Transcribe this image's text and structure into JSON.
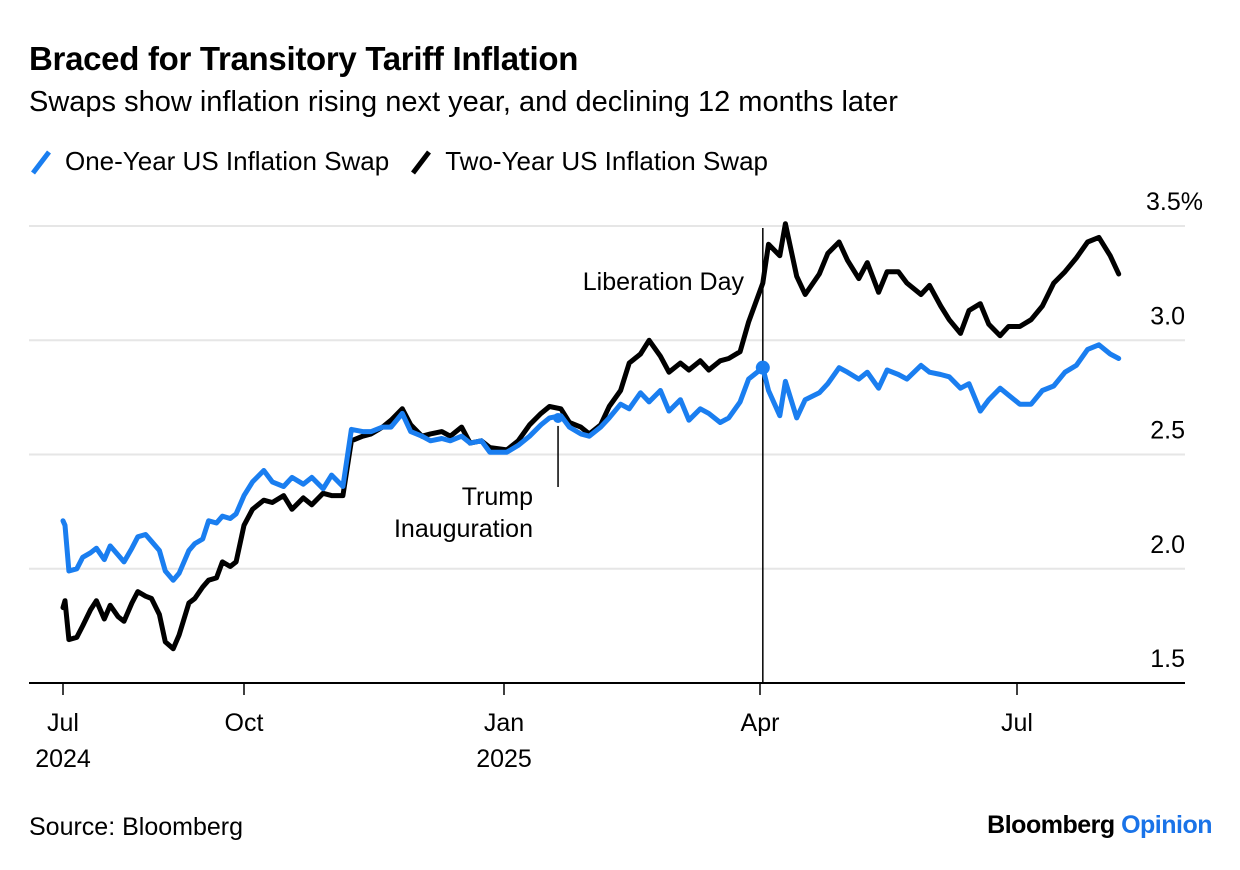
{
  "header": {
    "title": "Braced for Transitory Tariff Inflation",
    "subtitle": "Swaps show inflation rising next year, and declining 12 months later"
  },
  "footer": {
    "source": "Source: Bloomberg",
    "brand_main": "Bloomberg",
    "brand_accent": "Opinion"
  },
  "colors": {
    "one_year": "#1a7ef0",
    "two_year": "#000000",
    "grid": "#e6e6e6",
    "brand_accent": "#1a73e8"
  },
  "chart_data": {
    "type": "line",
    "title": "Braced for Transitory Tariff Inflation",
    "subtitle": "Swaps show inflation rising next year, and declining 12 months later",
    "xlabel": "",
    "ylabel": "",
    "y_unit": "%",
    "ylim": [
      1.5,
      3.5
    ],
    "y_ticks": [
      1.5,
      2.0,
      2.5,
      3.0,
      3.5
    ],
    "y_tick_labels": [
      "1.5",
      "2.0",
      "2.5",
      "3.0",
      "3.5%"
    ],
    "y_axis_position": "right",
    "grid": true,
    "legend_position": "top-left",
    "x_range": [
      "2024-06-12",
      "2025-09-12"
    ],
    "x_ticks": [
      {
        "date": "2024-07-01",
        "label": "Jul",
        "year": "2024"
      },
      {
        "date": "2024-10-01",
        "label": "Oct",
        "year": ""
      },
      {
        "date": "2025-01-01",
        "label": "Jan",
        "year": "2025"
      },
      {
        "date": "2025-04-01",
        "label": "Apr",
        "year": ""
      },
      {
        "date": "2025-07-01",
        "label": "Jul",
        "year": ""
      }
    ],
    "legend": [
      "One-Year US Inflation Swap",
      "Two-Year US Inflation Swap"
    ],
    "annotations": [
      {
        "label": "Trump Inauguration",
        "date": "2025-01-20",
        "series": "One-Year US Inflation Swap",
        "value": 2.66
      },
      {
        "label": "Liberation Day",
        "date": "2025-04-02",
        "series": "One-Year US Inflation Swap",
        "value": 2.88,
        "marker": true
      }
    ],
    "x": [
      "2024-07-01",
      "2024-07-02",
      "2024-07-04",
      "2024-07-08",
      "2024-07-11",
      "2024-07-15",
      "2024-07-18",
      "2024-07-22",
      "2024-07-25",
      "2024-07-29",
      "2024-08-01",
      "2024-08-05",
      "2024-08-08",
      "2024-08-12",
      "2024-08-15",
      "2024-08-19",
      "2024-08-22",
      "2024-08-26",
      "2024-08-29",
      "2024-09-03",
      "2024-09-06",
      "2024-09-10",
      "2024-09-13",
      "2024-09-17",
      "2024-09-20",
      "2024-09-24",
      "2024-09-27",
      "2024-10-01",
      "2024-10-04",
      "2024-10-08",
      "2024-10-11",
      "2024-10-15",
      "2024-10-18",
      "2024-10-22",
      "2024-10-25",
      "2024-10-29",
      "2024-11-01",
      "2024-11-05",
      "2024-11-08",
      "2024-11-12",
      "2024-11-15",
      "2024-11-19",
      "2024-11-22",
      "2024-11-26",
      "2024-11-29",
      "2024-12-03",
      "2024-12-06",
      "2024-12-10",
      "2024-12-13",
      "2024-12-17",
      "2024-12-20",
      "2024-12-24",
      "2024-12-27",
      "2025-01-02",
      "2025-01-06",
      "2025-01-10",
      "2025-01-14",
      "2025-01-17",
      "2025-01-21",
      "2025-01-24",
      "2025-01-28",
      "2025-01-31",
      "2025-02-04",
      "2025-02-07",
      "2025-02-11",
      "2025-02-14",
      "2025-02-18",
      "2025-02-21",
      "2025-02-25",
      "2025-02-28",
      "2025-03-04",
      "2025-03-07",
      "2025-03-11",
      "2025-03-14",
      "2025-03-18",
      "2025-03-21",
      "2025-03-25",
      "2025-03-28",
      "2025-04-02",
      "2025-04-04",
      "2025-04-08",
      "2025-04-10",
      "2025-04-14",
      "2025-04-17",
      "2025-04-22",
      "2025-04-25",
      "2025-04-29",
      "2025-05-02",
      "2025-05-06",
      "2025-05-09",
      "2025-05-13",
      "2025-05-16",
      "2025-05-20",
      "2025-05-23",
      "2025-05-28",
      "2025-05-31",
      "2025-06-04",
      "2025-06-07",
      "2025-06-11",
      "2025-06-14",
      "2025-06-18",
      "2025-06-21",
      "2025-06-25",
      "2025-06-28",
      "2025-07-02",
      "2025-07-06",
      "2025-07-10",
      "2025-07-14",
      "2025-07-18",
      "2025-07-22",
      "2025-07-26",
      "2025-07-30",
      "2025-08-03",
      "2025-08-06"
    ],
    "series": [
      {
        "name": "One-Year US Inflation Swap",
        "values": [
          2.21,
          2.19,
          1.99,
          2.0,
          2.05,
          2.07,
          2.09,
          2.04,
          2.1,
          2.06,
          2.03,
          2.09,
          2.14,
          2.15,
          2.12,
          2.08,
          1.99,
          1.95,
          1.98,
          2.08,
          2.11,
          2.13,
          2.21,
          2.2,
          2.23,
          2.22,
          2.24,
          2.32,
          2.38,
          2.43,
          2.38,
          2.36,
          2.4,
          2.37,
          2.4,
          2.35,
          2.41,
          2.36,
          2.61,
          2.6,
          2.6,
          2.62,
          2.62,
          2.68,
          2.6,
          2.58,
          2.56,
          2.57,
          2.56,
          2.58,
          2.55,
          2.56,
          2.51,
          2.51,
          2.54,
          2.58,
          2.63,
          2.66,
          2.67,
          2.62,
          2.59,
          2.58,
          2.62,
          2.66,
          2.72,
          2.7,
          2.77,
          2.73,
          2.78,
          2.69,
          2.74,
          2.65,
          2.7,
          2.68,
          2.64,
          2.66,
          2.73,
          2.83,
          2.88,
          2.78,
          2.67,
          2.82,
          2.66,
          2.74,
          2.77,
          2.81,
          2.88,
          2.86,
          2.83,
          2.86,
          2.79,
          2.87,
          2.85,
          2.83,
          2.89,
          2.86,
          2.85,
          2.84,
          2.79,
          2.81,
          2.69,
          2.74,
          2.79,
          2.76,
          2.72,
          2.72,
          2.78,
          2.8,
          2.86,
          2.89,
          2.96,
          2.98,
          2.94,
          2.92
        ]
      },
      {
        "name": "Two-Year US Inflation Swap",
        "values": [
          1.83,
          1.86,
          1.69,
          1.7,
          1.75,
          1.82,
          1.86,
          1.78,
          1.84,
          1.79,
          1.77,
          1.85,
          1.9,
          1.88,
          1.87,
          1.8,
          1.68,
          1.65,
          1.71,
          1.85,
          1.87,
          1.92,
          1.95,
          1.96,
          2.03,
          2.01,
          2.03,
          2.19,
          2.26,
          2.3,
          2.29,
          2.32,
          2.26,
          2.31,
          2.28,
          2.33,
          2.32,
          2.32,
          2.56,
          2.58,
          2.59,
          2.62,
          2.65,
          2.7,
          2.63,
          2.58,
          2.59,
          2.6,
          2.58,
          2.62,
          2.55,
          2.56,
          2.53,
          2.52,
          2.56,
          2.63,
          2.68,
          2.71,
          2.7,
          2.64,
          2.62,
          2.59,
          2.63,
          2.71,
          2.78,
          2.9,
          2.94,
          3.0,
          2.93,
          2.86,
          2.9,
          2.87,
          2.91,
          2.87,
          2.91,
          2.92,
          2.95,
          3.08,
          3.25,
          3.42,
          3.37,
          3.51,
          3.28,
          3.2,
          3.29,
          3.38,
          3.43,
          3.35,
          3.27,
          3.34,
          3.21,
          3.3,
          3.3,
          3.25,
          3.2,
          3.24,
          3.15,
          3.09,
          3.03,
          3.13,
          3.16,
          3.07,
          3.02,
          3.06,
          3.06,
          3.09,
          3.15,
          3.25,
          3.3,
          3.36,
          3.43,
          3.45,
          3.37,
          3.29
        ]
      }
    ]
  }
}
